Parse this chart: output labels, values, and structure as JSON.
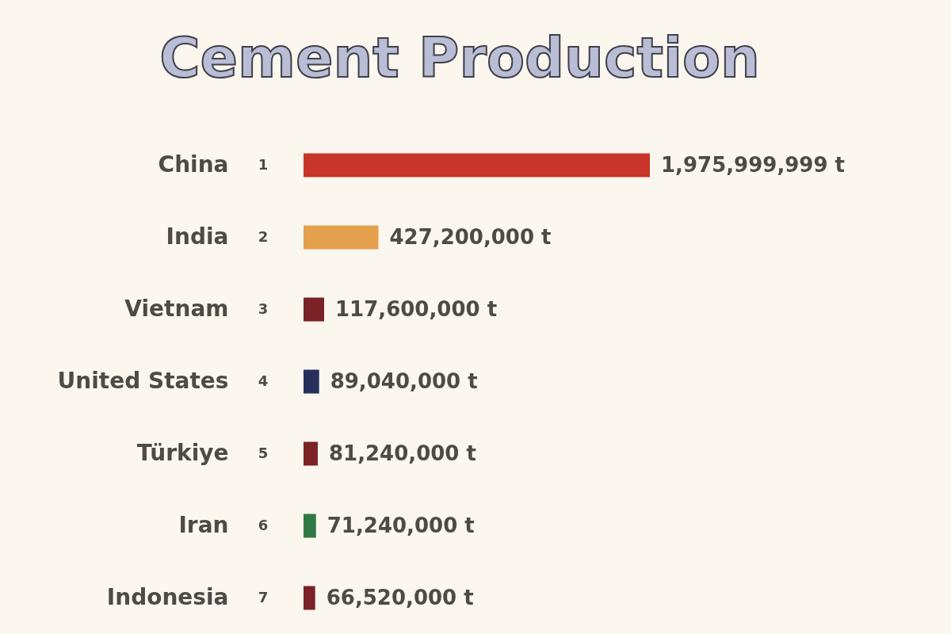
{
  "chart_data": {
    "type": "bar",
    "orientation": "horizontal",
    "title": "Cement Production",
    "categories": [
      "China",
      "India",
      "Vietnam",
      "United States",
      "Türkiye",
      "Iran",
      "Indonesia"
    ],
    "values": [
      1975999999,
      427200000,
      117600000,
      89040000,
      81240000,
      71240000,
      66520000
    ],
    "colors": [
      "#c8352a",
      "#e5a04e",
      "#7a2226",
      "#26305a",
      "#7a2226",
      "#2d7a45",
      "#7a2226"
    ],
    "value_labels": [
      "1,975,999,999 t",
      "427,200,000 t",
      "117,600,000 t",
      "89,040,000 t",
      "81,240,000 t",
      "71,240,000 t",
      "66,520,000 t"
    ],
    "annotations": [
      "1",
      "2",
      "3",
      "4",
      "5",
      "6",
      "7"
    ]
  }
}
